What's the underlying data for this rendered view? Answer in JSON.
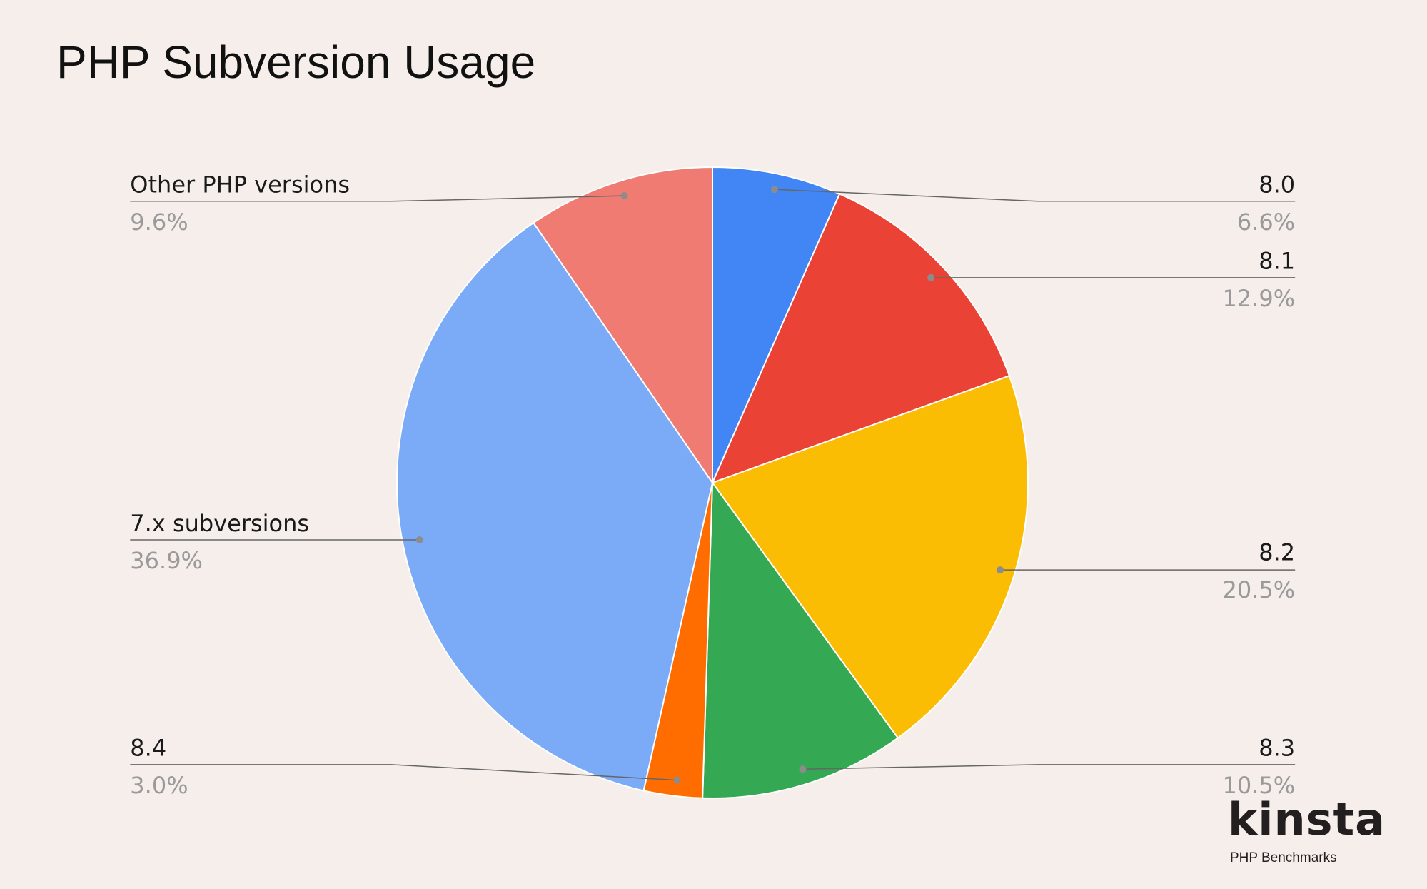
{
  "chart_data": {
    "type": "pie",
    "title": "PHP Subversion Usage",
    "start_angle_deg": 0,
    "direction": "clockwise",
    "slices": [
      {
        "label": "8.0",
        "value": 6.6,
        "display": "6.6%",
        "color": "#4285f4"
      },
      {
        "label": "8.1",
        "value": 12.9,
        "display": "12.9%",
        "color": "#ea4335"
      },
      {
        "label": "8.2",
        "value": 20.5,
        "display": "20.5%",
        "color": "#fbbc04"
      },
      {
        "label": "8.3",
        "value": 10.5,
        "display": "10.5%",
        "color": "#34a853"
      },
      {
        "label": "8.4",
        "value": 3.0,
        "display": "3.0%",
        "color": "#ff6d01"
      },
      {
        "label": "7.x subversions",
        "value": 36.9,
        "display": "36.9%",
        "color": "#7baaf7"
      },
      {
        "label": "Other PHP versions",
        "value": 9.6,
        "display": "9.6%",
        "color": "#f07b72"
      }
    ],
    "legend": "none (callout labels)"
  },
  "branding": {
    "logo": "kinsta",
    "subtitle": "PHP Benchmarks"
  }
}
